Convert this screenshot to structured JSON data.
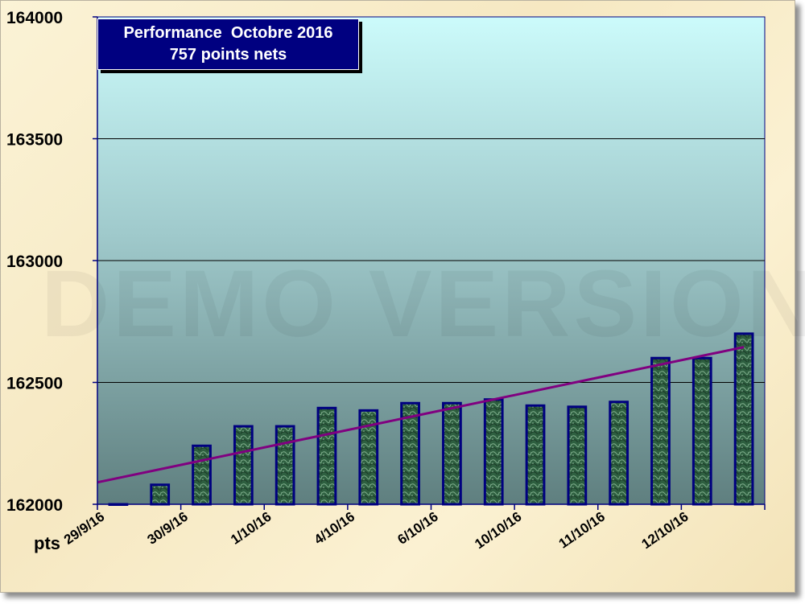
{
  "chart_data": {
    "type": "bar",
    "title": "Performance  Octobre 2016",
    "subtitle": "757 points nets",
    "ylabel": "pts",
    "xlabel": "",
    "ylim": [
      162000,
      164000
    ],
    "yticks": [
      "162000",
      "162500",
      "163000",
      "163500",
      "164000"
    ],
    "categories": [
      "29/9/16",
      "",
      "30/9/16",
      "",
      "1/10/16",
      "",
      "4/10/16",
      "",
      "6/10/16",
      "",
      "10/10/16",
      "",
      "11/10/16",
      "",
      "12/10/16",
      ""
    ],
    "values": [
      162000,
      162080,
      162240,
      162320,
      162320,
      162395,
      162385,
      162415,
      162415,
      162430,
      162405,
      162400,
      162420,
      162600,
      162600,
      162700
    ],
    "trendline": {
      "start": 162090,
      "end": 162645
    },
    "grid": true,
    "watermark": "DEMO VERSION",
    "colors": {
      "bar_fill": "#2d5a3d",
      "bar_edge": "#000080",
      "trend": "#800080",
      "title_bg": "#000080"
    }
  }
}
